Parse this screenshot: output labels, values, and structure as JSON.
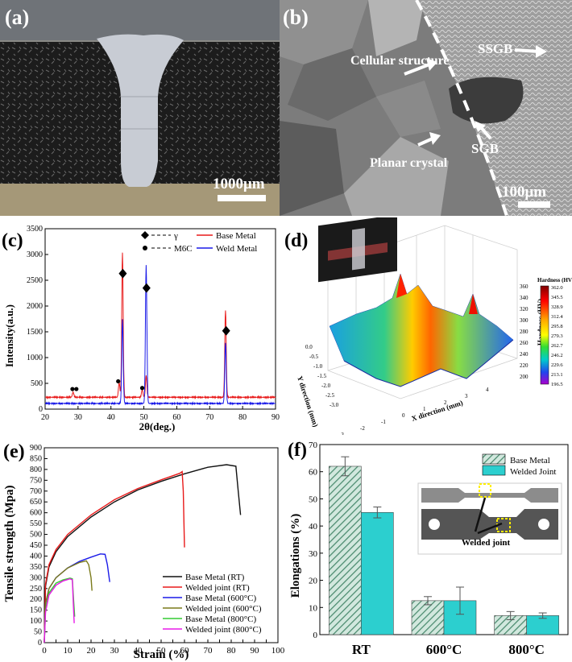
{
  "panels": {
    "a": {
      "label": "(a)",
      "scale_bar": "1000μm"
    },
    "b": {
      "label": "(b)",
      "scale_bar": "100μm",
      "annotations": [
        "SSGB",
        "Cellular structure",
        "SGB",
        "Planar crystal"
      ]
    },
    "c": {
      "label": "(c)",
      "legend": {
        "gamma": "γ",
        "m6c": "M6C",
        "base": "Base Metal",
        "weld": "Weld Metal"
      },
      "xlabel": "2θ(deg.)",
      "ylabel": "Intensity(a.u.)"
    },
    "d": {
      "label": "(d)",
      "colorbar_title": "Hardness (HV)",
      "colorbar_ticks": [
        "362.0",
        "345.5",
        "328.9",
        "312.4",
        "295.8",
        "279.3",
        "262.7",
        "246.2",
        "229.6",
        "213.1",
        "196.5"
      ],
      "zlabel": "Hardness (HV)",
      "zticks": [
        "360",
        "340",
        "320",
        "300",
        "280",
        "260",
        "240",
        "220",
        "200"
      ],
      "xlabel": "X direction (mm)",
      "ylabel": "Y direction (mm)",
      "xticks": [
        "4",
        "3",
        "2",
        "1",
        "0",
        "-1",
        "-2",
        "-3",
        "-4"
      ],
      "yticks": [
        "0.0",
        "-0.5",
        "-1.0",
        "-1.5",
        "-2.0",
        "-2.5",
        "-3.0"
      ]
    },
    "e": {
      "label": "(e)",
      "xlabel": "Strain (%)",
      "ylabel": "Tensile strength (Mpa)"
    },
    "f": {
      "label": "(f)",
      "ylabel": "Elongations (%)",
      "legend": [
        "Base Metal",
        "Welded Joint"
      ],
      "inset_label": "Welded joint"
    }
  },
  "colors": {
    "base": "#e81a1a",
    "weld": "#1a1ae8",
    "hatch_bar": "#5a9e80",
    "cyan_bar": "#2ccfcf"
  },
  "chart_data": [
    {
      "panel": "c",
      "type": "line",
      "xlim": [
        20,
        90
      ],
      "ylim": [
        0,
        3500
      ],
      "xticks": [
        20,
        30,
        40,
        50,
        60,
        70,
        80,
        90
      ],
      "yticks": [
        0,
        500,
        1000,
        1500,
        2000,
        2500,
        3000,
        3500
      ],
      "series": [
        {
          "name": "Base Metal",
          "color": "#e81a1a",
          "baseline": 230,
          "peaks": [
            [
              28.5,
              330
            ],
            [
              42.5,
              520
            ],
            [
              43.5,
              3050
            ],
            [
              49.5,
              380
            ],
            [
              50.7,
              650
            ],
            [
              74.8,
              1930
            ]
          ]
        },
        {
          "name": "Weld Metal",
          "color": "#1a1ae8",
          "baseline": 110,
          "peaks": [
            [
              43.5,
              1750
            ],
            [
              50.7,
              2800
            ],
            [
              74.8,
              1300
            ]
          ]
        }
      ],
      "markers": [
        {
          "symbol": "diamond",
          "x": 43.6,
          "y": 2630
        },
        {
          "symbol": "diamond",
          "x": 50.8,
          "y": 2350
        },
        {
          "symbol": "diamond",
          "x": 75.0,
          "y": 1520
        },
        {
          "symbol": "dot",
          "x": 28.3,
          "y": 390
        },
        {
          "symbol": "dot",
          "x": 29.5,
          "y": 390
        },
        {
          "symbol": "dot",
          "x": 42.2,
          "y": 540
        },
        {
          "symbol": "dot",
          "x": 49.5,
          "y": 410
        }
      ]
    },
    {
      "panel": "e",
      "type": "line",
      "xlim": [
        0,
        100
      ],
      "ylim": [
        0,
        900
      ],
      "xticks": [
        0,
        5,
        10,
        15,
        20,
        25,
        30,
        35,
        40,
        45,
        50,
        55,
        60,
        65,
        70,
        75,
        80,
        85,
        90,
        95,
        100
      ],
      "yticks": [
        0,
        50,
        100,
        150,
        200,
        250,
        300,
        350,
        400,
        450,
        500,
        550,
        600,
        650,
        700,
        750,
        800,
        850,
        900
      ],
      "series": [
        {
          "name": "Base Metal (RT)",
          "color": "#111111",
          "points": [
            [
              0,
              0
            ],
            [
              0.5,
              260
            ],
            [
              2,
              350
            ],
            [
              5,
              420
            ],
            [
              10,
              490
            ],
            [
              20,
              580
            ],
            [
              30,
              650
            ],
            [
              40,
              705
            ],
            [
              50,
              745
            ],
            [
              60,
              780
            ],
            [
              70,
              810
            ],
            [
              78,
              822
            ],
            [
              82,
              815
            ],
            [
              83,
              700
            ],
            [
              84,
              590
            ]
          ]
        },
        {
          "name": "Welded joint (RT)",
          "color": "#e81a1a",
          "points": [
            [
              0,
              0
            ],
            [
              0.5,
              270
            ],
            [
              2,
              360
            ],
            [
              5,
              430
            ],
            [
              10,
              500
            ],
            [
              20,
              590
            ],
            [
              30,
              660
            ],
            [
              40,
              712
            ],
            [
              50,
              752
            ],
            [
              58,
              782
            ],
            [
              59,
              790
            ],
            [
              59.5,
              700
            ],
            [
              59.8,
              540
            ],
            [
              60,
              440
            ]
          ]
        },
        {
          "name": "Base Metal (600°C)",
          "color": "#1a1ae8",
          "points": [
            [
              0,
              0
            ],
            [
              0.5,
              180
            ],
            [
              2,
              250
            ],
            [
              5,
              300
            ],
            [
              10,
              345
            ],
            [
              15,
              375
            ],
            [
              20,
              395
            ],
            [
              24,
              410
            ],
            [
              26,
              408
            ],
            [
              27,
              360
            ],
            [
              28,
              280
            ]
          ]
        },
        {
          "name": "Welded joint (600°C)",
          "color": "#7a7a1a",
          "points": [
            [
              0,
              0
            ],
            [
              0.5,
              180
            ],
            [
              2,
              250
            ],
            [
              5,
              300
            ],
            [
              10,
              345
            ],
            [
              15,
              370
            ],
            [
              18,
              378
            ],
            [
              19,
              360
            ],
            [
              20,
              300
            ],
            [
              20.4,
              240
            ]
          ]
        },
        {
          "name": "Base Metal (800°C)",
          "color": "#33cc33",
          "points": [
            [
              0,
              0
            ],
            [
              0.5,
              150
            ],
            [
              2,
              230
            ],
            [
              5,
              275
            ],
            [
              8,
              290
            ],
            [
              11,
              298
            ],
            [
              12,
              295
            ],
            [
              12.5,
              200
            ],
            [
              13,
              120
            ]
          ]
        },
        {
          "name": "Welded joint (800°C)",
          "color": "#e81ae8",
          "points": [
            [
              0,
              0
            ],
            [
              0.5,
              140
            ],
            [
              2,
              220
            ],
            [
              5,
              265
            ],
            [
              8,
              285
            ],
            [
              11,
              295
            ],
            [
              12,
              290
            ],
            [
              12.4,
              180
            ],
            [
              12.8,
              90
            ]
          ]
        }
      ]
    },
    {
      "panel": "f",
      "type": "bar",
      "categories": [
        "RT",
        "600°C",
        "800°C"
      ],
      "ylim": [
        0,
        70
      ],
      "yticks": [
        0,
        10,
        20,
        30,
        40,
        50,
        60,
        70
      ],
      "series": [
        {
          "name": "Base Metal",
          "values": [
            62,
            12.5,
            7
          ],
          "errors": [
            3.5,
            1.5,
            1.5
          ]
        },
        {
          "name": "Welded Joint",
          "values": [
            45,
            12.5,
            7
          ],
          "errors": [
            2,
            5,
            1
          ]
        }
      ]
    }
  ]
}
